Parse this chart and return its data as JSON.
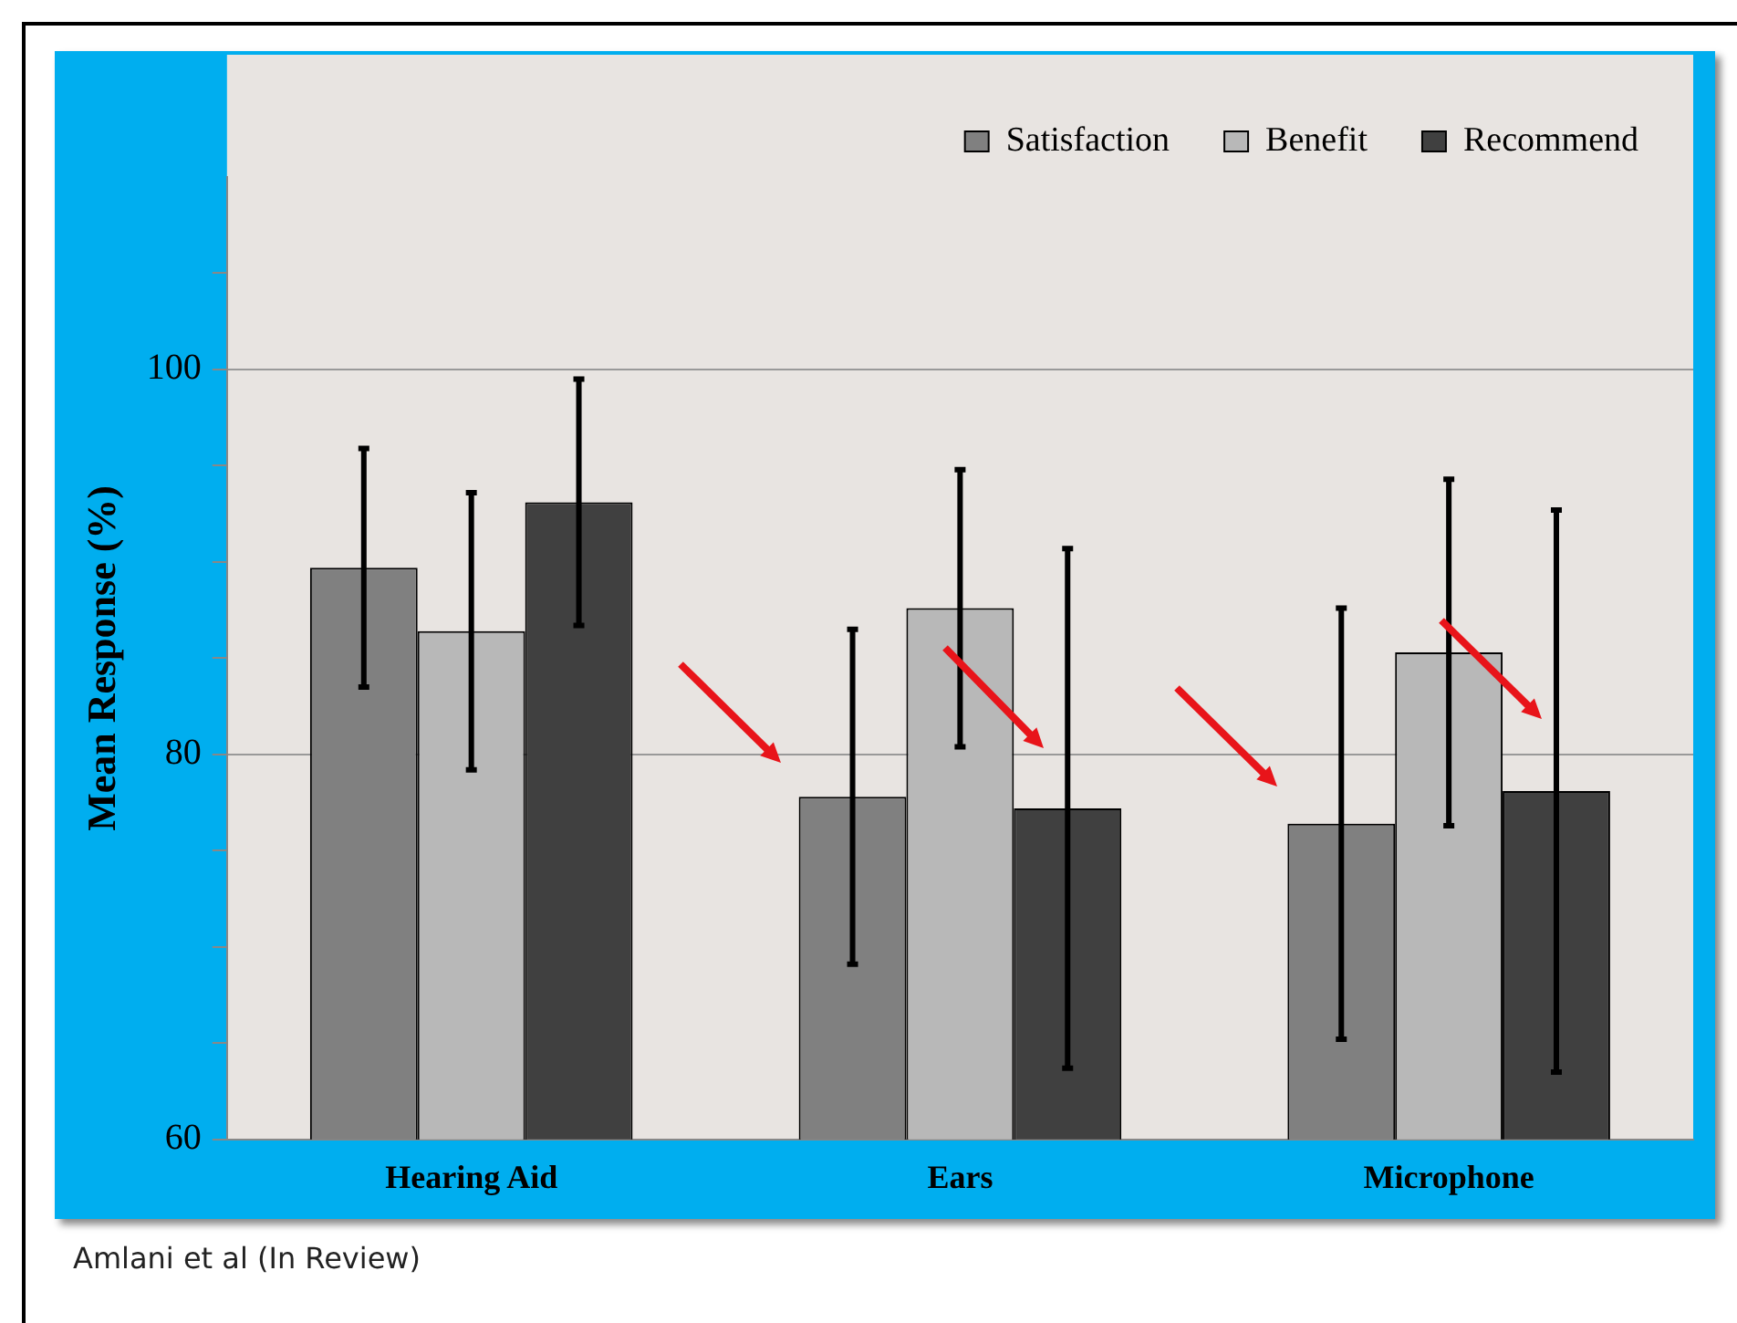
{
  "chart_data": {
    "type": "bar",
    "ylabel": "Mean Response (%)",
    "categories": [
      "Hearing Aid",
      "Ears",
      "Microphone"
    ],
    "series": [
      {
        "name": "Satisfaction",
        "color": "#808080",
        "values": [
          89.7,
          77.8,
          76.4
        ],
        "errors": [
          6.2,
          8.7,
          11.2
        ]
      },
      {
        "name": "Benefit",
        "color": "#b8b8b8",
        "values": [
          86.4,
          87.6,
          85.3
        ],
        "errors": [
          7.2,
          7.2,
          9
        ]
      },
      {
        "name": "Recommend",
        "color": "#404040",
        "values": [
          93.1,
          77.2,
          78.1
        ],
        "errors": [
          6.4,
          13.5,
          14.6
        ]
      }
    ],
    "ylim": [
      60,
      110
    ],
    "yticks": [
      60,
      {
        "value": 65,
        "label": null
      },
      {
        "value": 70,
        "label": null
      },
      {
        "value": 75,
        "label": null
      },
      80,
      {
        "value": 85,
        "label": null
      },
      {
        "value": 90,
        "label": null
      },
      {
        "value": 95,
        "label": null
      },
      100,
      {
        "value": 105,
        "label": null
      }
    ],
    "grid": "y",
    "legend": "top right",
    "annotations": [
      "Amlani et al (In Review)"
    ]
  }
}
